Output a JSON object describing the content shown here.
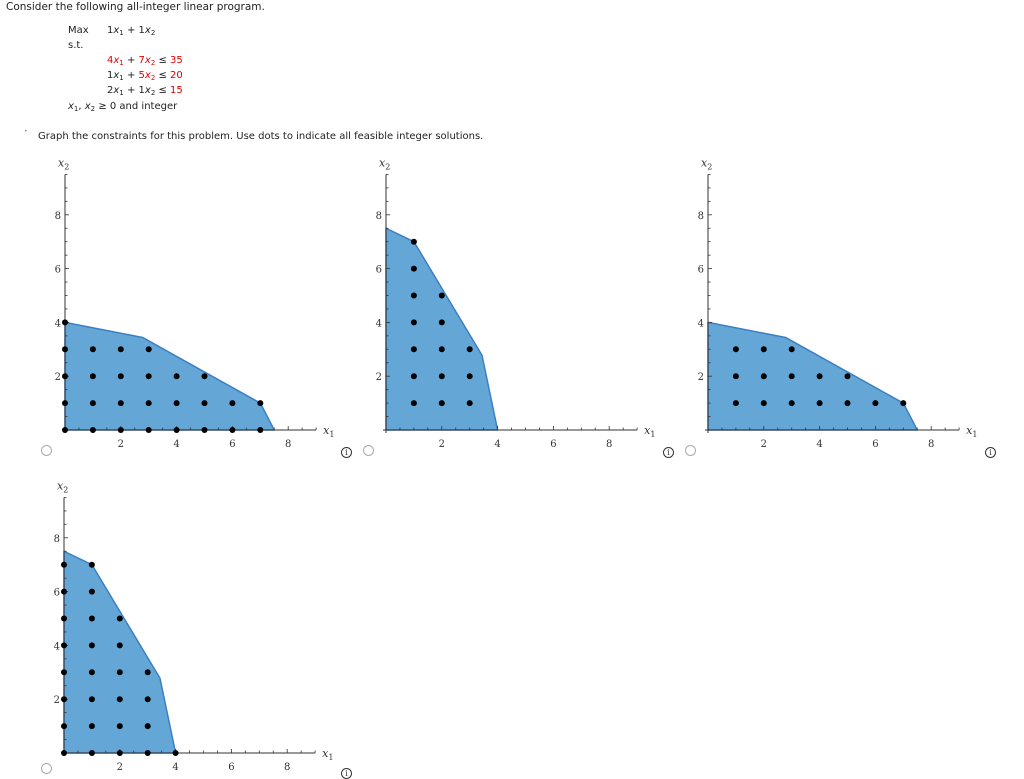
{
  "intro": "Consider the following all-integer linear program.",
  "lp": {
    "max_label": "Max",
    "objective": {
      "c1": "1",
      "c2": "1"
    },
    "st_label": "s.t.",
    "constraints": [
      {
        "a1": "4",
        "a2": "7",
        "op": "≤",
        "rhs": "35",
        "a1_red": true,
        "a2_red": true
      },
      {
        "a1": "1",
        "a2": "5",
        "op": "≤",
        "rhs": "20",
        "a1_red": false,
        "a2_red": true
      },
      {
        "a1": "2",
        "a2": "1",
        "op": "≤",
        "rhs": "15",
        "a1_red": false,
        "a2_red": false
      }
    ],
    "nonneg": "≥ 0 and integer"
  },
  "instruction": "Graph the constraints for this problem. Use dots to indicate all feasible integer solutions.",
  "colors": {
    "fill": "#64a7d7",
    "edge": "#3b7fc2",
    "dot": "#000000",
    "axis": "#333333",
    "red": "#e00000"
  },
  "options": [
    {
      "id": "A",
      "selected": false
    },
    {
      "id": "B",
      "selected": false
    },
    {
      "id": "C",
      "selected": false
    },
    {
      "id": "D",
      "selected": false
    }
  ],
  "chart_data": [
    {
      "type": "scatter",
      "title": "Option A",
      "xlabel": "x1",
      "ylabel": "x2",
      "xlim": [
        0,
        9
      ],
      "ylim": [
        0,
        9.5
      ],
      "xticks": [
        2,
        4,
        6,
        8
      ],
      "yticks": [
        2,
        4,
        6,
        8
      ],
      "region": [
        [
          0,
          0
        ],
        [
          0,
          4
        ],
        [
          2.78,
          3.44
        ],
        [
          7,
          1
        ],
        [
          7.5,
          0
        ]
      ],
      "points": [
        [
          0,
          0
        ],
        [
          1,
          0
        ],
        [
          2,
          0
        ],
        [
          3,
          0
        ],
        [
          4,
          0
        ],
        [
          5,
          0
        ],
        [
          6,
          0
        ],
        [
          7,
          0
        ],
        [
          0,
          1
        ],
        [
          1,
          1
        ],
        [
          2,
          1
        ],
        [
          3,
          1
        ],
        [
          4,
          1
        ],
        [
          5,
          1
        ],
        [
          6,
          1
        ],
        [
          7,
          1
        ],
        [
          0,
          2
        ],
        [
          1,
          2
        ],
        [
          2,
          2
        ],
        [
          3,
          2
        ],
        [
          4,
          2
        ],
        [
          5,
          2
        ],
        [
          0,
          3
        ],
        [
          1,
          3
        ],
        [
          2,
          3
        ],
        [
          3,
          3
        ],
        [
          0,
          4
        ]
      ]
    },
    {
      "type": "scatter",
      "title": "Option B",
      "xlabel": "x1",
      "ylabel": "x2",
      "xlim": [
        0,
        9
      ],
      "ylim": [
        0,
        9.5
      ],
      "xticks": [
        2,
        4,
        6,
        8
      ],
      "yticks": [
        2,
        4,
        6,
        8
      ],
      "region": [
        [
          0,
          0
        ],
        [
          0,
          7.5
        ],
        [
          1,
          7
        ],
        [
          3.44,
          2.78
        ],
        [
          4,
          0
        ]
      ],
      "points": [
        [
          1,
          1
        ],
        [
          2,
          1
        ],
        [
          3,
          1
        ],
        [
          1,
          2
        ],
        [
          2,
          2
        ],
        [
          3,
          2
        ],
        [
          1,
          3
        ],
        [
          2,
          3
        ],
        [
          3,
          3
        ],
        [
          1,
          4
        ],
        [
          2,
          4
        ],
        [
          1,
          5
        ],
        [
          2,
          5
        ],
        [
          1,
          6
        ],
        [
          1,
          7
        ]
      ]
    },
    {
      "type": "scatter",
      "title": "Option C",
      "xlabel": "x1",
      "ylabel": "x2",
      "xlim": [
        0,
        9
      ],
      "ylim": [
        0,
        9.5
      ],
      "xticks": [
        2,
        4,
        6,
        8
      ],
      "yticks": [
        2,
        4,
        6,
        8
      ],
      "region": [
        [
          0,
          0
        ],
        [
          0,
          4
        ],
        [
          2.78,
          3.44
        ],
        [
          7,
          1
        ],
        [
          7.5,
          0
        ]
      ],
      "points": [
        [
          1,
          1
        ],
        [
          2,
          1
        ],
        [
          3,
          1
        ],
        [
          4,
          1
        ],
        [
          5,
          1
        ],
        [
          6,
          1
        ],
        [
          7,
          1
        ],
        [
          1,
          2
        ],
        [
          2,
          2
        ],
        [
          3,
          2
        ],
        [
          4,
          2
        ],
        [
          5,
          2
        ],
        [
          1,
          3
        ],
        [
          2,
          3
        ],
        [
          3,
          3
        ]
      ]
    },
    {
      "type": "scatter",
      "title": "Option D",
      "xlabel": "x1",
      "ylabel": "x2",
      "xlim": [
        0,
        9
      ],
      "ylim": [
        0,
        9.5
      ],
      "xticks": [
        2,
        4,
        6,
        8
      ],
      "yticks": [
        2,
        4,
        6,
        8
      ],
      "region": [
        [
          0,
          0
        ],
        [
          0,
          7.5
        ],
        [
          1,
          7
        ],
        [
          3.44,
          2.78
        ],
        [
          4,
          0
        ]
      ],
      "points": [
        [
          0,
          0
        ],
        [
          1,
          0
        ],
        [
          2,
          0
        ],
        [
          3,
          0
        ],
        [
          4,
          0
        ],
        [
          0,
          1
        ],
        [
          1,
          1
        ],
        [
          2,
          1
        ],
        [
          3,
          1
        ],
        [
          0,
          2
        ],
        [
          1,
          2
        ],
        [
          2,
          2
        ],
        [
          3,
          2
        ],
        [
          0,
          3
        ],
        [
          1,
          3
        ],
        [
          2,
          3
        ],
        [
          3,
          3
        ],
        [
          0,
          4
        ],
        [
          1,
          4
        ],
        [
          2,
          4
        ],
        [
          0,
          5
        ],
        [
          1,
          5
        ],
        [
          2,
          5
        ],
        [
          0,
          6
        ],
        [
          1,
          6
        ],
        [
          0,
          7
        ],
        [
          1,
          7
        ]
      ]
    }
  ]
}
